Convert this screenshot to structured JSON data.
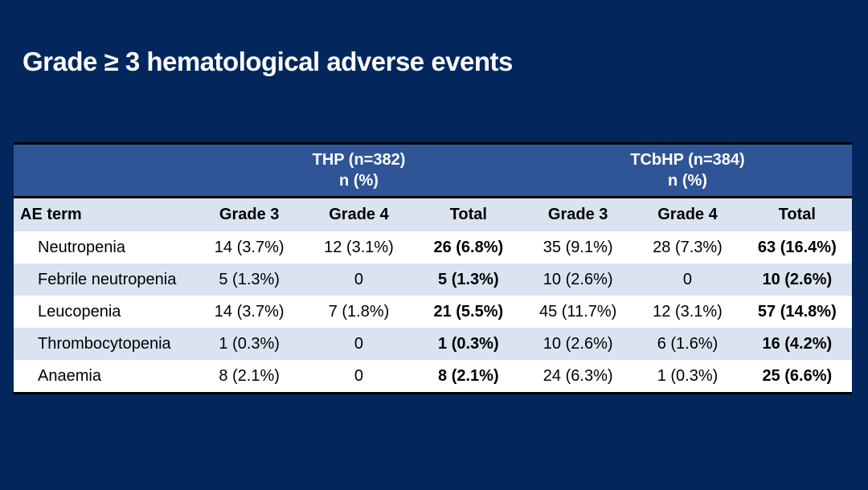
{
  "page": {
    "background_color": "#03275C",
    "accent_header_color": "#2F5597",
    "alt_row_color": "#DBE3F1",
    "title": "Grade ≥ 3 hematological adverse events"
  },
  "table": {
    "group_headers": [
      {
        "line1": "THP (n=382)",
        "line2": "n (%)"
      },
      {
        "line1": "TCbHP (n=384)",
        "line2": "n (%)"
      }
    ],
    "columns": [
      "AE term",
      "Grade 3",
      "Grade 4",
      "Total",
      "Grade 3",
      "Grade 4",
      "Total"
    ],
    "rows": [
      {
        "term": "Neutropenia",
        "cells": [
          "14 (3.7%)",
          "12 (3.1%)",
          "26 (6.8%)",
          "35 (9.1%)",
          "28 (7.3%)",
          "63 (16.4%)"
        ]
      },
      {
        "term": "Febrile neutropenia",
        "cells": [
          "5 (1.3%)",
          "0",
          "5 (1.3%)",
          "10 (2.6%)",
          "0",
          "10 (2.6%)"
        ]
      },
      {
        "term": "Leucopenia",
        "cells": [
          "14 (3.7%)",
          "7 (1.8%)",
          "21 (5.5%)",
          "45 (11.7%)",
          "12 (3.1%)",
          "57 (14.8%)"
        ]
      },
      {
        "term": "Thrombocytopenia",
        "cells": [
          "1 (0.3%)",
          "0",
          "1 (0.3%)",
          "10 (2.6%)",
          "6 (1.6%)",
          "16 (4.2%)"
        ]
      },
      {
        "term": "Anaemia",
        "cells": [
          "8 (2.1%)",
          "0",
          "8 (2.1%)",
          "24 (6.3%)",
          "1 (0.3%)",
          "25 (6.6%)"
        ]
      }
    ]
  }
}
